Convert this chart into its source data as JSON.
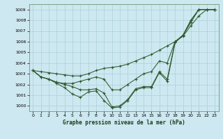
{
  "background_color": "#cde8f0",
  "grid_color": "#aacfdb",
  "line_color": "#2d5a2d",
  "xlabel": "Graphe pression niveau de la mer (hPa)",
  "ylim": [
    999.5,
    1009.5
  ],
  "xlim": [
    -0.5,
    23.5
  ],
  "yticks": [
    1000,
    1001,
    1002,
    1003,
    1004,
    1005,
    1006,
    1007,
    1008,
    1009
  ],
  "xticks": [
    0,
    1,
    2,
    3,
    4,
    5,
    6,
    7,
    8,
    9,
    10,
    11,
    12,
    13,
    14,
    15,
    16,
    17,
    18,
    19,
    20,
    21,
    22,
    23
  ],
  "series": [
    [
      1003.3,
      1002.7,
      1002.5,
      1002.1,
      1001.7,
      1001.1,
      1000.8,
      1001.3,
      1001.4,
      1000.5,
      999.8,
      999.9,
      1000.5,
      1001.5,
      1001.7,
      1001.7,
      1003.1,
      1002.3,
      1005.9,
      1006.6,
      1008.0,
      1009.0,
      1009.0,
      1009.0
    ],
    [
      1003.3,
      1002.7,
      1002.5,
      1002.2,
      1002.0,
      1001.8,
      1001.5,
      1001.5,
      1001.6,
      1001.2,
      999.9,
      1000.0,
      1000.6,
      1001.6,
      1001.8,
      1001.8,
      1003.2,
      1002.5,
      1006.0,
      1006.6,
      1008.0,
      1009.0,
      1009.0,
      1009.0
    ],
    [
      1003.3,
      1002.7,
      1002.5,
      1002.2,
      1002.1,
      1002.1,
      1002.3,
      1002.5,
      1002.7,
      1002.5,
      1001.5,
      1001.5,
      1002.0,
      1002.5,
      1003.0,
      1003.2,
      1004.2,
      1004.0,
      1006.0,
      1006.6,
      1007.8,
      1009.0,
      1009.0,
      1009.0
    ],
    [
      1003.3,
      1003.2,
      1003.1,
      1003.0,
      1002.9,
      1002.8,
      1002.8,
      1003.0,
      1003.3,
      1003.5,
      1003.6,
      1003.7,
      1003.9,
      1004.2,
      1004.5,
      1004.8,
      1005.2,
      1005.6,
      1006.0,
      1006.5,
      1007.5,
      1008.4,
      1009.0,
      1009.0
    ]
  ]
}
